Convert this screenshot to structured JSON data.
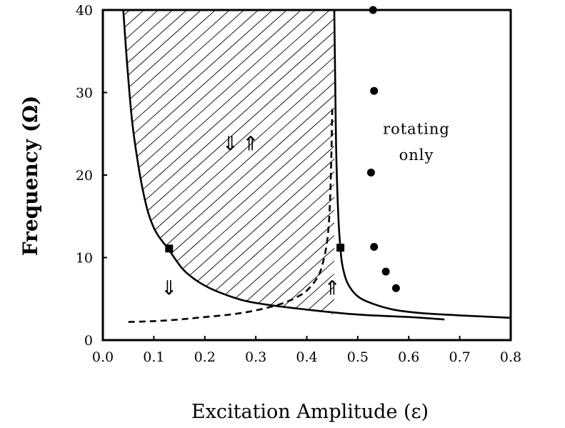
{
  "chart_data": {
    "type": "line",
    "xlabel": "Excitation Amplitude (ε)",
    "ylabel": "Frequency (Ω)",
    "xlim": [
      0.0,
      0.8
    ],
    "ylim": [
      0,
      40
    ],
    "x_ticks": [
      "0.0",
      "0.1",
      "0.2",
      "0.3",
      "0.4",
      "0.5",
      "0.6",
      "0.7",
      "0.8"
    ],
    "y_ticks": [
      "0",
      "10",
      "20",
      "30",
      "40"
    ],
    "grid": false,
    "series": [
      {
        "style": "solid",
        "x": [
          0.04,
          0.05,
          0.06,
          0.08,
          0.1,
          0.13,
          0.16,
          0.2,
          0.25,
          0.3,
          0.4,
          0.5,
          0.6,
          0.67
        ],
        "y": [
          40,
          31.6,
          25.2,
          17.7,
          13.6,
          10.9,
          8.4,
          6.6,
          5.3,
          4.5,
          3.7,
          3.1,
          2.8,
          2.5
        ]
      },
      {
        "style": "solid",
        "x": [
          0.454,
          0.456,
          0.458,
          0.462,
          0.466,
          0.47,
          0.48,
          0.5,
          0.53,
          0.57,
          0.62,
          0.7,
          0.8
        ],
        "y": [
          40,
          29.8,
          22.1,
          14.8,
          11.1,
          9.0,
          6.9,
          5.3,
          4.4,
          3.7,
          3.3,
          3.0,
          2.7
        ]
      },
      {
        "style": "dashed",
        "x": [
          0.05,
          0.1,
          0.15,
          0.2,
          0.25,
          0.3,
          0.35,
          0.38,
          0.4,
          0.42,
          0.43,
          0.44,
          0.445,
          0.448,
          0.45
        ],
        "y": [
          2.2,
          2.3,
          2.5,
          2.8,
          3.1,
          3.6,
          4.4,
          5.2,
          6.0,
          7.5,
          9.0,
          12.0,
          16.0,
          22.0,
          28.0
        ]
      },
      {
        "style": "points-circle",
        "x": [
          0.53,
          0.532,
          0.526,
          0.532,
          0.555,
          0.575
        ],
        "y": [
          40,
          30.2,
          20.3,
          11.3,
          8.3,
          6.3
        ]
      },
      {
        "style": "points-square",
        "x": [
          0.13,
          0.466
        ],
        "y": [
          11.1,
          11.2
        ]
      }
    ],
    "annotations": [
      {
        "text": "rotating",
        "x": 0.615,
        "y": 25.0
      },
      {
        "text": "only",
        "x": 0.615,
        "y": 21.8
      },
      {
        "text": "⇓",
        "x": 0.25,
        "y": 23.0
      },
      {
        "text": "⇑",
        "x": 0.29,
        "y": 23.0
      },
      {
        "text": "⇓",
        "x": 0.13,
        "y": 5.5
      },
      {
        "text": "⇑",
        "x": 0.45,
        "y": 5.5
      }
    ],
    "shaded_region": "hatched area between the left solid curve, x = 0.454 and the top of the plot"
  }
}
